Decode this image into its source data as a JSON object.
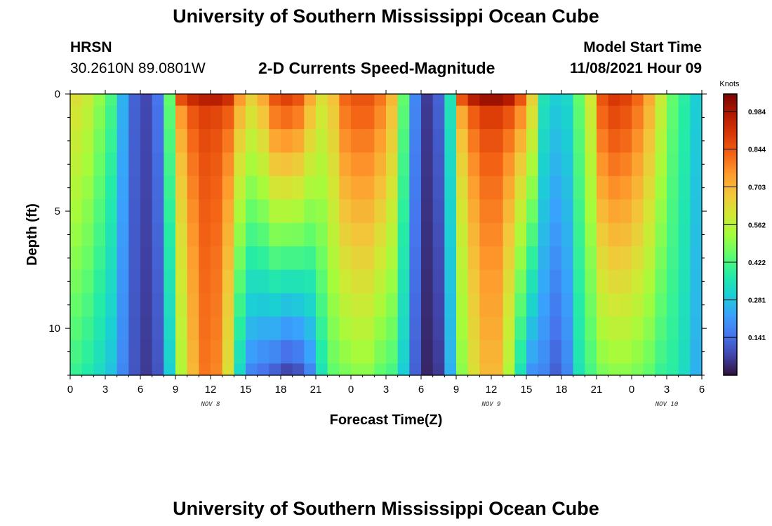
{
  "header": {
    "title": "University of Southern Mississippi Ocean Cube",
    "station": "HRSN",
    "coords": "30.2610N  89.0801W",
    "subtitle": "2-D Currents Speed-Magnitude",
    "model_label": "Model Start Time",
    "model_time": "11/08/2021 Hour 09"
  },
  "footer": {
    "title": "University of Southern Mississippi Ocean Cube"
  },
  "chart_data": {
    "type": "heatmap",
    "xlabel": "Forecast Time(Z)",
    "ylabel": "Depth (ft)",
    "x_tick_labels": [
      "0",
      "3",
      "6",
      "9",
      "12",
      "15",
      "18",
      "21",
      "0",
      "3",
      "6",
      "9",
      "12",
      "15",
      "18",
      "21",
      "0",
      "3",
      "6"
    ],
    "x_range_hours": [
      0,
      54
    ],
    "date_labels": [
      {
        "text": "NOV 8",
        "hour": 12
      },
      {
        "text": "NOV 9",
        "hour": 36
      },
      {
        "text": "NOV 10",
        "hour": 51
      }
    ],
    "y_tick_labels": [
      "0",
      "5",
      "10"
    ],
    "y_range_ft": [
      0,
      12
    ],
    "colorbar_unit": "Knots",
    "colorbar_ticks": [
      "0.984",
      "0.844",
      "0.703",
      "0.562",
      "0.422",
      "0.281",
      "0.141"
    ],
    "colorbar_range": [
      0,
      1.05
    ],
    "colormap": [
      "#30123b",
      "#4145ab",
      "#4675ed",
      "#39a2fc",
      "#1bcfd4",
      "#24eca6",
      "#61fc6c",
      "#a4fc3b",
      "#d1e834",
      "#f3c63a",
      "#fe9b2d",
      "#f36315",
      "#d93806",
      "#b11901",
      "#7a0403"
    ],
    "depths_ft": [
      0,
      1,
      2,
      3,
      4,
      5,
      6,
      7,
      8,
      9,
      10,
      11,
      12
    ],
    "profiles": [
      {
        "hour": 0,
        "top": 0.62,
        "bot": 0.4,
        "k": 1.0
      },
      {
        "hour": 1,
        "top": 0.58,
        "bot": 0.37,
        "k": 1.0
      },
      {
        "hour": 2,
        "top": 0.5,
        "bot": 0.33,
        "k": 1.0
      },
      {
        "hour": 3,
        "top": 0.42,
        "bot": 0.28,
        "k": 1.0
      },
      {
        "hour": 4,
        "top": 0.25,
        "bot": 0.18,
        "k": 1.0
      },
      {
        "hour": 5,
        "top": 0.12,
        "bot": 0.1,
        "k": 1.0
      },
      {
        "hour": 6,
        "top": 0.08,
        "bot": 0.06,
        "k": 1.0
      },
      {
        "hour": 7,
        "top": 0.15,
        "bot": 0.1,
        "k": 1.0
      },
      {
        "hour": 8,
        "top": 0.45,
        "bot": 0.3,
        "k": 1.0
      },
      {
        "hour": 9,
        "top": 0.86,
        "bot": 0.55,
        "k": 0.4
      },
      {
        "hour": 10,
        "top": 0.93,
        "bot": 0.7,
        "k": 0.4
      },
      {
        "hour": 11,
        "top": 0.96,
        "bot": 0.8,
        "k": 0.3
      },
      {
        "hour": 12,
        "top": 0.96,
        "bot": 0.78,
        "k": 0.3
      },
      {
        "hour": 13,
        "top": 0.92,
        "bot": 0.62,
        "k": 0.5
      },
      {
        "hour": 14,
        "top": 0.75,
        "bot": 0.32,
        "k": 0.8
      },
      {
        "hour": 15,
        "top": 0.65,
        "bot": 0.18,
        "k": 1.0
      },
      {
        "hour": 16,
        "top": 0.72,
        "bot": 0.15,
        "k": 1.0
      },
      {
        "hour": 17,
        "top": 0.85,
        "bot": 0.12,
        "k": 1.0
      },
      {
        "hour": 18,
        "top": 0.88,
        "bot": 0.08,
        "k": 1.0
      },
      {
        "hour": 19,
        "top": 0.85,
        "bot": 0.1,
        "k": 1.0
      },
      {
        "hour": 20,
        "top": 0.72,
        "bot": 0.18,
        "k": 1.0
      },
      {
        "hour": 21,
        "top": 0.62,
        "bot": 0.35,
        "k": 1.0
      },
      {
        "hour": 22,
        "top": 0.68,
        "bot": 0.45,
        "k": 1.0
      },
      {
        "hour": 23,
        "top": 0.82,
        "bot": 0.48,
        "k": 1.0
      },
      {
        "hour": 24,
        "top": 0.85,
        "bot": 0.5,
        "k": 1.0
      },
      {
        "hour": 25,
        "top": 0.85,
        "bot": 0.5,
        "k": 1.0
      },
      {
        "hour": 26,
        "top": 0.8,
        "bot": 0.45,
        "k": 1.0
      },
      {
        "hour": 27,
        "top": 0.7,
        "bot": 0.42,
        "k": 1.0
      },
      {
        "hour": 28,
        "top": 0.45,
        "bot": 0.3,
        "k": 1.0
      },
      {
        "hour": 29,
        "top": 0.18,
        "bot": 0.12,
        "k": 1.0
      },
      {
        "hour": 30,
        "top": 0.06,
        "bot": 0.03,
        "k": 1.0
      },
      {
        "hour": 31,
        "top": 0.12,
        "bot": 0.06,
        "k": 1.0
      },
      {
        "hour": 32,
        "top": 0.35,
        "bot": 0.25,
        "k": 1.0
      },
      {
        "hour": 33,
        "top": 0.85,
        "bot": 0.5,
        "k": 0.4
      },
      {
        "hour": 34,
        "top": 0.96,
        "bot": 0.62,
        "k": 0.4
      },
      {
        "hour": 35,
        "top": 1.0,
        "bot": 0.7,
        "k": 0.4
      },
      {
        "hour": 36,
        "top": 1.0,
        "bot": 0.7,
        "k": 0.4
      },
      {
        "hour": 37,
        "top": 0.97,
        "bot": 0.55,
        "k": 0.5
      },
      {
        "hour": 38,
        "top": 0.85,
        "bot": 0.35,
        "k": 0.7
      },
      {
        "hour": 39,
        "top": 0.65,
        "bot": 0.2,
        "k": 1.0
      },
      {
        "hour": 40,
        "top": 0.35,
        "bot": 0.18,
        "k": 1.0
      },
      {
        "hour": 41,
        "top": 0.3,
        "bot": 0.12,
        "k": 1.0
      },
      {
        "hour": 42,
        "top": 0.32,
        "bot": 0.18,
        "k": 1.0
      },
      {
        "hour": 43,
        "top": 0.45,
        "bot": 0.35,
        "k": 1.0
      },
      {
        "hour": 44,
        "top": 0.6,
        "bot": 0.42,
        "k": 1.0
      },
      {
        "hour": 45,
        "top": 0.85,
        "bot": 0.48,
        "k": 1.0
      },
      {
        "hour": 46,
        "top": 0.9,
        "bot": 0.5,
        "k": 1.0
      },
      {
        "hour": 47,
        "top": 0.88,
        "bot": 0.5,
        "k": 1.0
      },
      {
        "hour": 48,
        "top": 0.82,
        "bot": 0.48,
        "k": 1.0
      },
      {
        "hour": 49,
        "top": 0.72,
        "bot": 0.45,
        "k": 1.0
      },
      {
        "hour": 50,
        "top": 0.58,
        "bot": 0.4,
        "k": 1.0
      },
      {
        "hour": 51,
        "top": 0.45,
        "bot": 0.38,
        "k": 1.0
      },
      {
        "hour": 52,
        "top": 0.38,
        "bot": 0.33,
        "k": 1.0
      },
      {
        "hour": 53,
        "top": 0.3,
        "bot": 0.25,
        "k": 1.0
      }
    ]
  }
}
